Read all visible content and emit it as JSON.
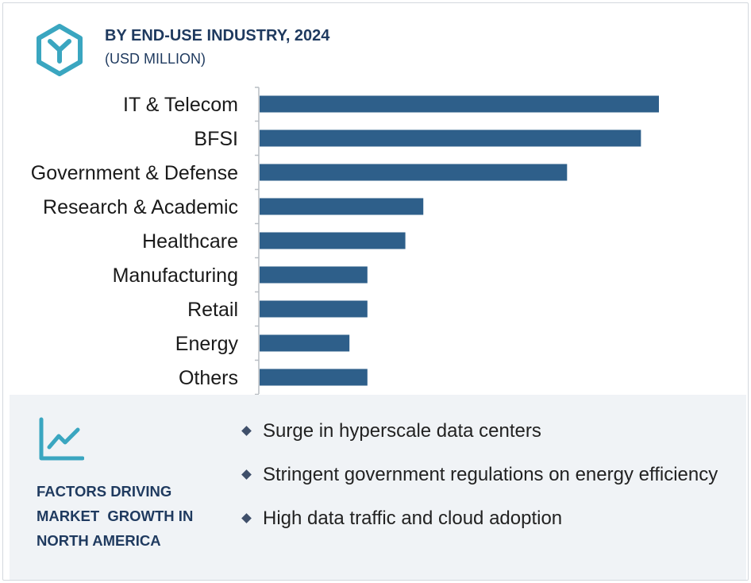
{
  "header": {
    "title": "BY END-USE INDUSTRY, 2024",
    "subtitle": "(USD MILLION)"
  },
  "colors": {
    "bar": "#2e5f8a",
    "accent": "#3aa6c0",
    "title": "#1f3a5f",
    "panel_bg": "#f0f3f6"
  },
  "chart_data": {
    "type": "bar",
    "orientation": "horizontal",
    "categories": [
      "IT & Telecom",
      "BFSI",
      "Government & Defense",
      "Research & Academic",
      "Healthcare",
      "Manufacturing",
      "Retail",
      "Energy",
      "Others"
    ],
    "values": [
      100,
      95.5,
      77,
      41,
      36.5,
      27,
      27,
      22.5,
      27
    ],
    "xlim": [
      0,
      100
    ],
    "title": "BY END-USE INDUSTRY, 2024",
    "subtitle": "(USD MILLION)",
    "xlabel": "",
    "ylabel": "",
    "grid": false,
    "legend": "none"
  },
  "factors": {
    "icon": "trend-line-chart-icon",
    "title_lines": [
      "FACTORS DRIVING",
      "MARKET  GROWTH IN",
      "NORTH AMERICA"
    ],
    "items": [
      "Surge in hyperscale data centers",
      "Stringent government regulations on energy efficiency",
      "High data traffic and cloud adoption"
    ]
  }
}
